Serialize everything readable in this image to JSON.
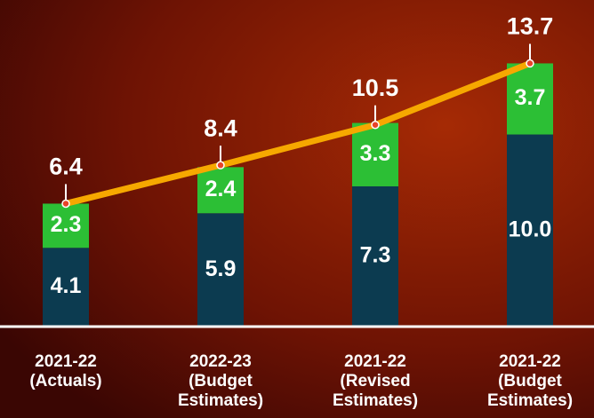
{
  "chart_data": {
    "type": "bar",
    "stacked": true,
    "categories": [
      [
        "2021-22",
        "(Actuals)"
      ],
      [
        "2022-23",
        "(Budget",
        "Estimates)"
      ],
      [
        "2021-22",
        "(Revised",
        "Estimates)"
      ],
      [
        "2021-22",
        "(Budget",
        "Estimates)"
      ]
    ],
    "series": [
      {
        "color": "#0c3b50",
        "values": [
          4.1,
          5.9,
          7.3,
          10.0
        ],
        "value_labels": [
          "4.1",
          "5.9",
          "7.3",
          "10.0"
        ]
      },
      {
        "color": "#2cbf35",
        "values": [
          2.3,
          2.4,
          3.3,
          3.7
        ]
      }
    ],
    "totals": {
      "type": "line",
      "color": "#f6a800",
      "values": [
        6.4,
        8.4,
        10.5,
        13.7
      ]
    },
    "ylim": [
      0,
      17
    ]
  }
}
